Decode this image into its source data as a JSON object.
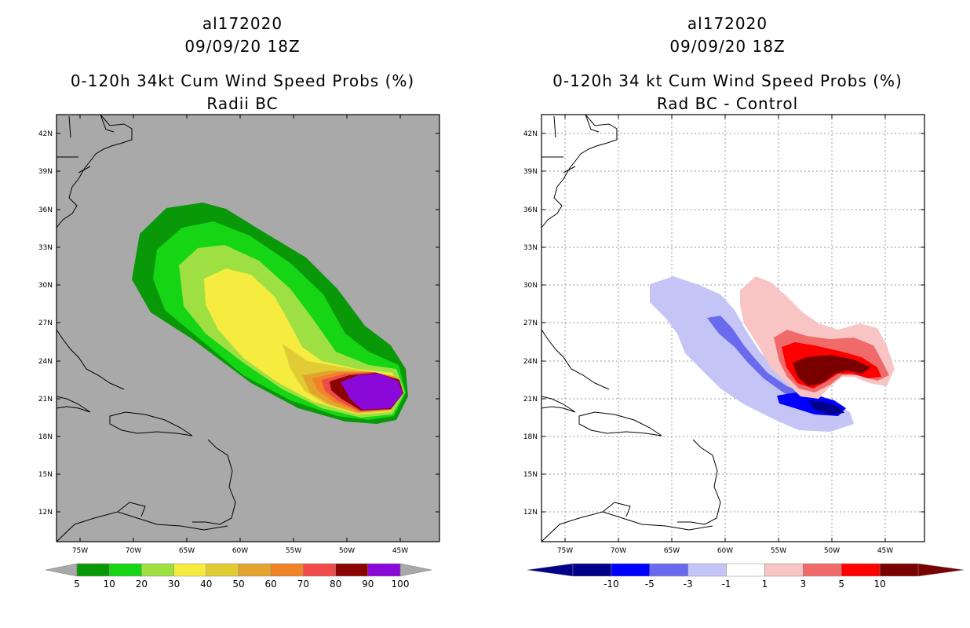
{
  "left": {
    "title_lines": [
      "al172020",
      "09/09/20 18Z",
      "0-120h 34kt Cum Wind Speed Probs (%)",
      "Radii BC"
    ],
    "lat_labels": [
      "42N",
      "39N",
      "36N",
      "33N",
      "30N",
      "27N",
      "24N",
      "21N",
      "18N",
      "15N",
      "12N"
    ],
    "lon_labels": [
      "75W",
      "70W",
      "65W",
      "60W",
      "55W",
      "50W",
      "45W"
    ],
    "colorbar": {
      "colors": [
        "#089808",
        "#15d515",
        "#9ee042",
        "#f5ec3f",
        "#e1cc35",
        "#e2a42e",
        "#f08228",
        "#f04a4a",
        "#8c0303",
        "#8a08d8"
      ],
      "labels": [
        "5",
        "10",
        "20",
        "30",
        "40",
        "50",
        "60",
        "70",
        "80",
        "90",
        "100"
      ]
    },
    "background_color": "#a9a9a9"
  },
  "right": {
    "title_lines": [
      "al172020",
      "09/09/20 18Z",
      "0-120h 34 kt Cum Wind Speed Probs (%)",
      "Rad BC - Control"
    ],
    "lat_labels": [
      "42N",
      "39N",
      "36N",
      "33N",
      "30N",
      "27N",
      "24N",
      "21N",
      "18N",
      "15N",
      "12N"
    ],
    "lon_labels": [
      "75W",
      "70W",
      "65W",
      "60W",
      "55W",
      "50W",
      "45W"
    ],
    "colorbar": {
      "colors": [
        "#00008b",
        "#0000ff",
        "#6a6aee",
        "#c4c4f6",
        "#ffffff",
        "#f8c4c4",
        "#f06a6a",
        "#ff0000",
        "#7a0000"
      ],
      "labels": [
        "-10",
        "-5",
        "-3",
        "-1",
        "1",
        "3",
        "5",
        "10"
      ]
    }
  }
}
